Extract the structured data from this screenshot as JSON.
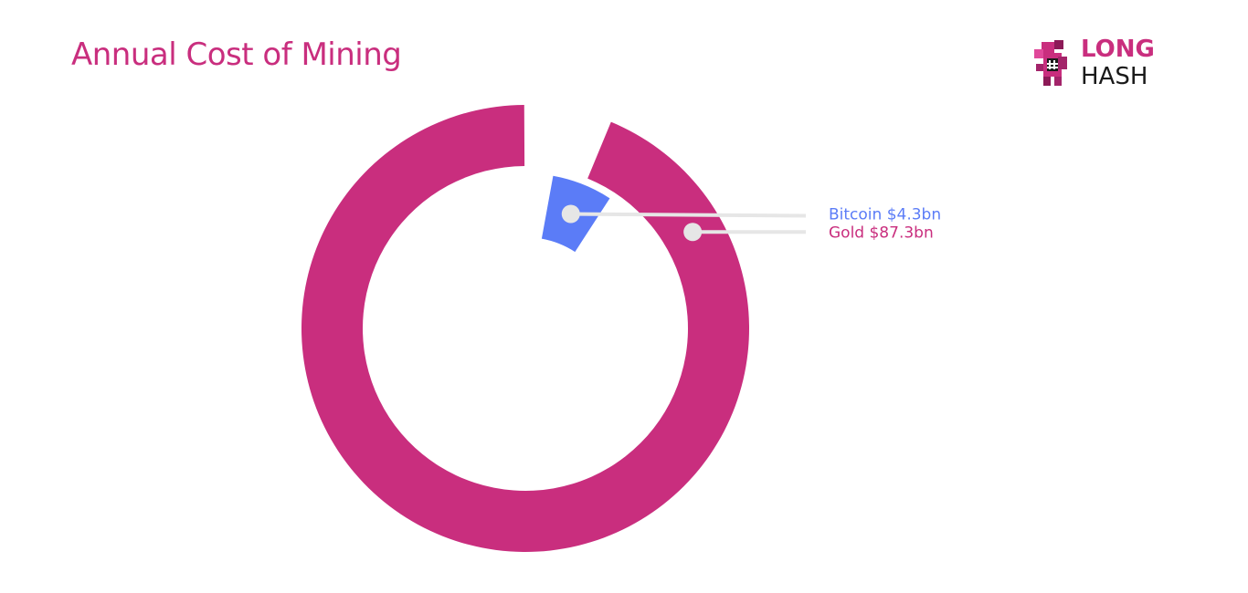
{
  "header": {
    "title": "Annual Cost of Mining"
  },
  "logo": {
    "line1": "LONG",
    "line2": "HASH",
    "mascot_icon": "pixel-dragon-icon"
  },
  "colors": {
    "gold": "#c92e7e",
    "bitcoin": "#5b7cf7",
    "leader": "#e6e6e6",
    "title": "#c92e7e"
  },
  "chart_data": {
    "type": "pie",
    "variant": "donut",
    "title": "Annual Cost of Mining",
    "categories": [
      "Gold",
      "Bitcoin"
    ],
    "values": [
      87.3,
      4.3
    ],
    "unit": "$bn",
    "labels": [
      "Gold $87.3bn",
      "Bitcoin $4.3bn"
    ]
  }
}
